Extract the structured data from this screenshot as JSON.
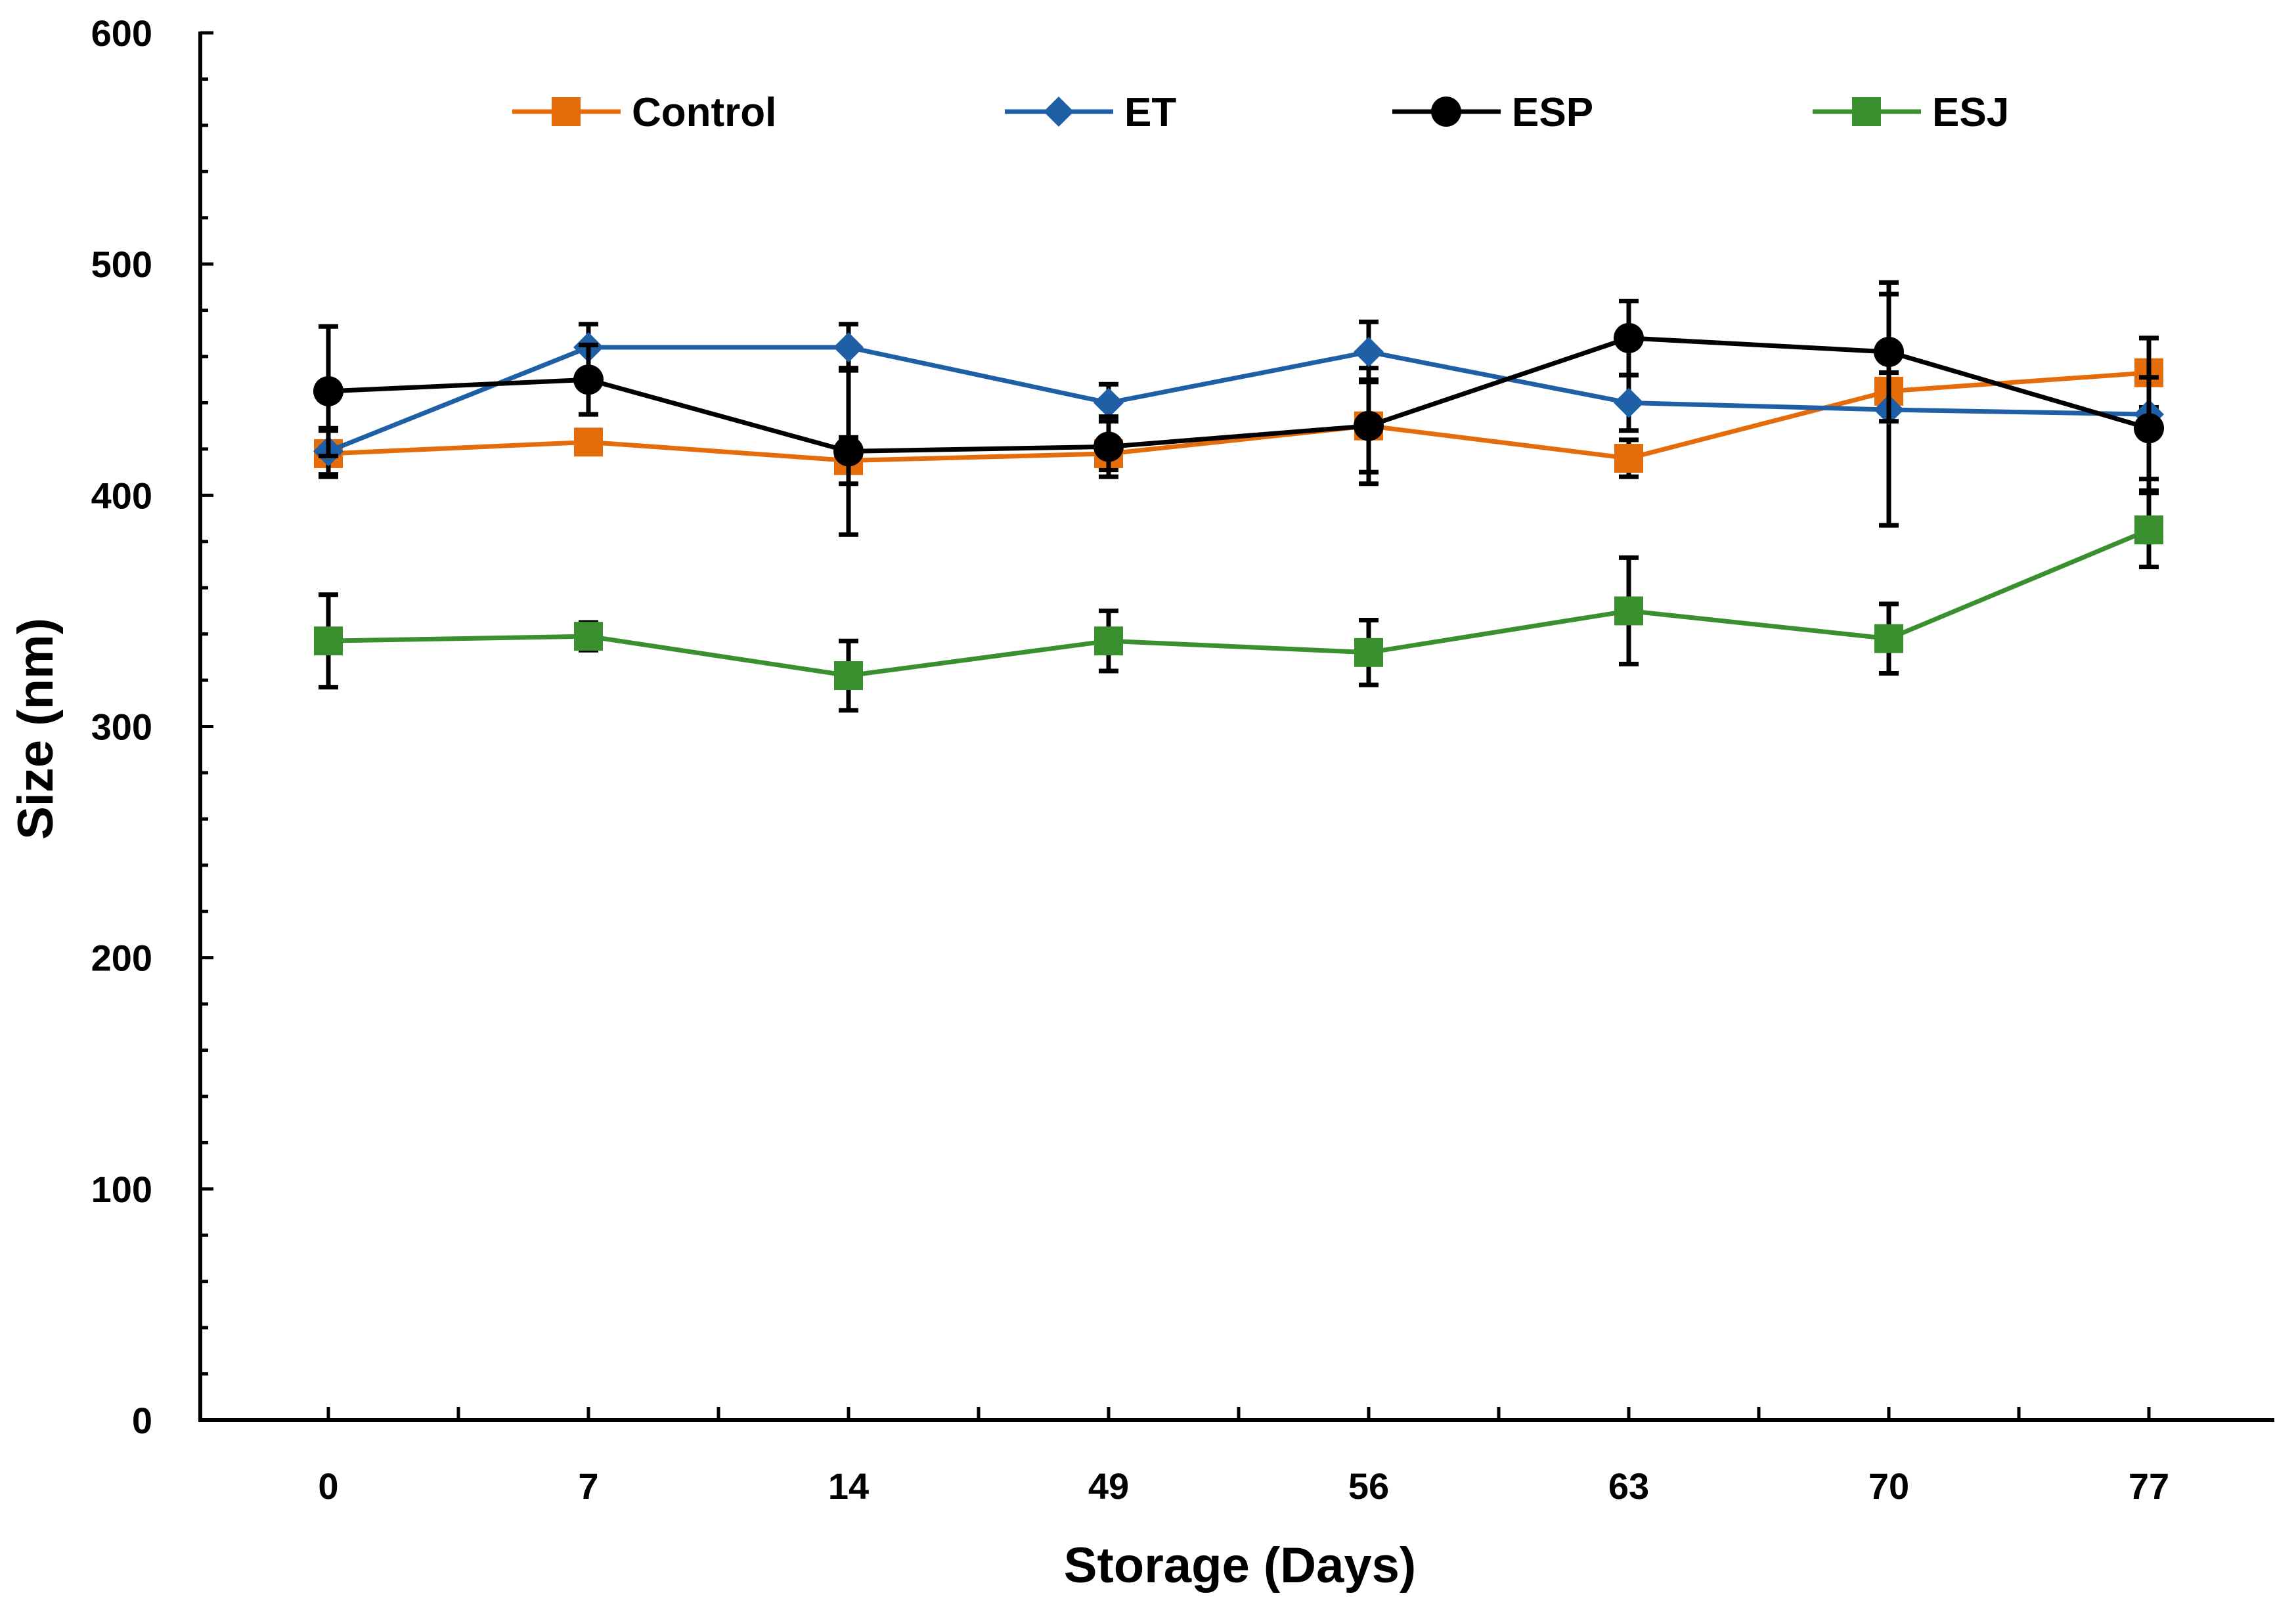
{
  "chart_data": {
    "type": "line",
    "title": "",
    "xlabel": "Storage (Days)",
    "ylabel": "Size (nm)",
    "categories": [
      "0",
      "7",
      "14",
      "49",
      "56",
      "63",
      "70",
      "77"
    ],
    "ylim": [
      0,
      600
    ],
    "yticks": [
      "0",
      "100",
      "200",
      "300",
      "400",
      "500",
      "600"
    ],
    "grid": false,
    "legend_position": "top",
    "series": [
      {
        "name": "Control",
        "color": "#E46C0A",
        "marker": "square",
        "values": [
          418,
          423,
          415,
          418,
          430,
          416,
          445,
          453
        ],
        "errors": [
          10,
          5,
          10,
          7,
          25,
          8,
          8,
          15
        ]
      },
      {
        "name": "ET",
        "color": "#1F5FA6",
        "marker": "diamond",
        "values": [
          419,
          464,
          464,
          440,
          462,
          440,
          437,
          435
        ],
        "errors": [
          10,
          10,
          10,
          8,
          13,
          12,
          50,
          33
        ]
      },
      {
        "name": "ESP",
        "color": "#000000",
        "marker": "circle",
        "values": [
          445,
          450,
          419,
          421,
          430,
          468,
          462,
          429
        ],
        "errors": [
          28,
          15,
          36,
          13,
          20,
          16,
          30,
          22
        ]
      },
      {
        "name": "ESJ",
        "color": "#3A8F2F",
        "marker": "square",
        "values": [
          337,
          339,
          322,
          337,
          332,
          350,
          338,
          385
        ],
        "errors": [
          20,
          6,
          15,
          13,
          14,
          23,
          15,
          16
        ]
      }
    ]
  }
}
